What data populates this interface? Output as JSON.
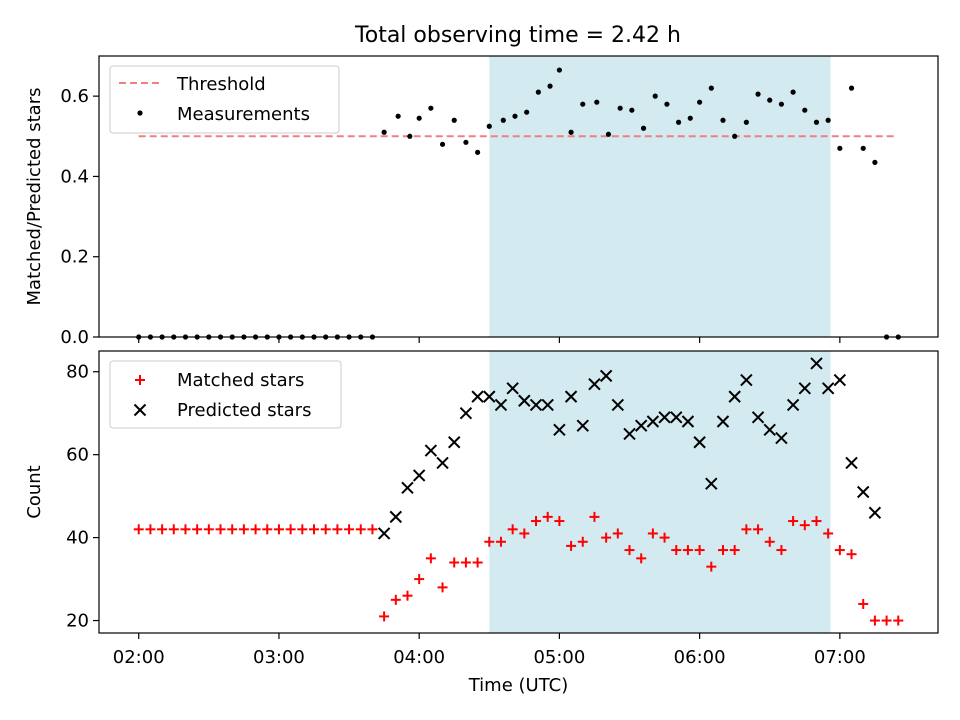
{
  "figure_title": "Total observing time = 2.42 h",
  "shaded_color": "#d3eaf0",
  "chart_data": [
    {
      "type": "scatter",
      "ylabel": "Matched/Predicted stars",
      "ylim": [
        0,
        0.7
      ],
      "yticks": [
        0.0,
        0.2,
        0.4,
        0.6
      ],
      "ytick_labels": [
        "0.0",
        "0.2",
        "0.4",
        "0.6"
      ],
      "legend_position": "upper-left",
      "threshold": {
        "name": "Threshold",
        "color": "#f08080",
        "value": 0.5,
        "x_range": [
          "02:00",
          "07:24"
        ]
      },
      "series": [
        {
          "name": "Measurements",
          "marker": "dot",
          "color": "#000000",
          "points": [
            [
              "02:00",
              0
            ],
            [
              "02:05",
              0
            ],
            [
              "02:10",
              0
            ],
            [
              "02:15",
              0
            ],
            [
              "02:20",
              0
            ],
            [
              "02:25",
              0
            ],
            [
              "02:30",
              0
            ],
            [
              "02:35",
              0
            ],
            [
              "02:40",
              0
            ],
            [
              "02:45",
              0
            ],
            [
              "02:50",
              0
            ],
            [
              "02:55",
              0
            ],
            [
              "03:00",
              0
            ],
            [
              "03:05",
              0
            ],
            [
              "03:10",
              0
            ],
            [
              "03:15",
              0
            ],
            [
              "03:20",
              0
            ],
            [
              "03:25",
              0
            ],
            [
              "03:30",
              0
            ],
            [
              "03:35",
              0
            ],
            [
              "03:40",
              0
            ],
            [
              "03:45",
              0.51
            ],
            [
              "03:51",
              0.55
            ],
            [
              "03:56",
              0.5
            ],
            [
              "04:00",
              0.545
            ],
            [
              "04:05",
              0.57
            ],
            [
              "04:10",
              0.48
            ],
            [
              "04:15",
              0.54
            ],
            [
              "04:20",
              0.485
            ],
            [
              "04:25",
              0.46
            ],
            [
              "04:30",
              0.525
            ],
            [
              "04:36",
              0.54
            ],
            [
              "04:41",
              0.55
            ],
            [
              "04:46",
              0.56
            ],
            [
              "04:51",
              0.61
            ],
            [
              "04:56",
              0.625
            ],
            [
              "05:00",
              0.665
            ],
            [
              "05:05",
              0.51
            ],
            [
              "05:10",
              0.58
            ],
            [
              "05:16",
              0.585
            ],
            [
              "05:21",
              0.505
            ],
            [
              "05:26",
              0.57
            ],
            [
              "05:31",
              0.565
            ],
            [
              "05:36",
              0.52
            ],
            [
              "05:41",
              0.6
            ],
            [
              "05:46",
              0.58
            ],
            [
              "05:51",
              0.535
            ],
            [
              "05:56",
              0.545
            ],
            [
              "06:00",
              0.585
            ],
            [
              "06:05",
              0.62
            ],
            [
              "06:10",
              0.54
            ],
            [
              "06:15",
              0.5
            ],
            [
              "06:20",
              0.535
            ],
            [
              "06:25",
              0.605
            ],
            [
              "06:30",
              0.59
            ],
            [
              "06:35",
              0.58
            ],
            [
              "06:40",
              0.61
            ],
            [
              "06:45",
              0.565
            ],
            [
              "06:50",
              0.535
            ],
            [
              "06:55",
              0.54
            ],
            [
              "07:00",
              0.47
            ],
            [
              "07:05",
              0.62
            ],
            [
              "07:10",
              0.47
            ],
            [
              "07:15",
              0.435
            ],
            [
              "07:20",
              0
            ],
            [
              "07:25",
              0
            ]
          ]
        }
      ]
    },
    {
      "type": "scatter",
      "xlabel": "Time (UTC)",
      "ylabel": "Count",
      "ylim": [
        17,
        85
      ],
      "yticks": [
        20,
        40,
        60,
        80
      ],
      "ytick_labels": [
        "20",
        "40",
        "60",
        "80"
      ],
      "legend_position": "upper-left",
      "series": [
        {
          "name": "Matched stars",
          "marker": "plus",
          "color": "#ff0000",
          "points": [
            [
              "02:00",
              42
            ],
            [
              "02:05",
              42
            ],
            [
              "02:10",
              42
            ],
            [
              "02:15",
              42
            ],
            [
              "02:20",
              42
            ],
            [
              "02:25",
              42
            ],
            [
              "02:30",
              42
            ],
            [
              "02:35",
              42
            ],
            [
              "02:40",
              42
            ],
            [
              "02:45",
              42
            ],
            [
              "02:50",
              42
            ],
            [
              "02:55",
              42
            ],
            [
              "03:00",
              42
            ],
            [
              "03:05",
              42
            ],
            [
              "03:10",
              42
            ],
            [
              "03:15",
              42
            ],
            [
              "03:20",
              42
            ],
            [
              "03:25",
              42
            ],
            [
              "03:30",
              42
            ],
            [
              "03:35",
              42
            ],
            [
              "03:40",
              42
            ],
            [
              "03:45",
              21
            ],
            [
              "03:50",
              25
            ],
            [
              "03:55",
              26
            ],
            [
              "04:00",
              30
            ],
            [
              "04:05",
              35
            ],
            [
              "04:10",
              28
            ],
            [
              "04:15",
              34
            ],
            [
              "04:20",
              34
            ],
            [
              "04:25",
              34
            ],
            [
              "04:30",
              39
            ],
            [
              "04:35",
              39
            ],
            [
              "04:40",
              42
            ],
            [
              "04:45",
              41
            ],
            [
              "04:50",
              44
            ],
            [
              "04:55",
              45
            ],
            [
              "05:00",
              44
            ],
            [
              "05:05",
              38
            ],
            [
              "05:10",
              39
            ],
            [
              "05:15",
              45
            ],
            [
              "05:20",
              40
            ],
            [
              "05:25",
              41
            ],
            [
              "05:30",
              37
            ],
            [
              "05:35",
              35
            ],
            [
              "05:40",
              41
            ],
            [
              "05:45",
              40
            ],
            [
              "05:50",
              37
            ],
            [
              "05:55",
              37
            ],
            [
              "06:00",
              37
            ],
            [
              "06:05",
              33
            ],
            [
              "06:10",
              37
            ],
            [
              "06:15",
              37
            ],
            [
              "06:20",
              42
            ],
            [
              "06:25",
              42
            ],
            [
              "06:30",
              39
            ],
            [
              "06:35",
              37
            ],
            [
              "06:40",
              44
            ],
            [
              "06:45",
              43
            ],
            [
              "06:50",
              44
            ],
            [
              "06:55",
              41
            ],
            [
              "07:00",
              37
            ],
            [
              "07:05",
              36
            ],
            [
              "07:10",
              24
            ],
            [
              "07:15",
              20
            ],
            [
              "07:20",
              20
            ],
            [
              "07:25",
              20
            ]
          ]
        },
        {
          "name": "Predicted stars",
          "marker": "x",
          "color": "#000000",
          "points": [
            [
              "03:45",
              41
            ],
            [
              "03:50",
              45
            ],
            [
              "03:55",
              52
            ],
            [
              "04:00",
              55
            ],
            [
              "04:05",
              61
            ],
            [
              "04:10",
              58
            ],
            [
              "04:15",
              63
            ],
            [
              "04:20",
              70
            ],
            [
              "04:25",
              74
            ],
            [
              "04:30",
              74
            ],
            [
              "04:35",
              72
            ],
            [
              "04:40",
              76
            ],
            [
              "04:45",
              73
            ],
            [
              "04:50",
              72
            ],
            [
              "04:55",
              72
            ],
            [
              "05:00",
              66
            ],
            [
              "05:05",
              74
            ],
            [
              "05:10",
              67
            ],
            [
              "05:15",
              77
            ],
            [
              "05:20",
              79
            ],
            [
              "05:25",
              72
            ],
            [
              "05:30",
              65
            ],
            [
              "05:35",
              67
            ],
            [
              "05:40",
              68
            ],
            [
              "05:45",
              69
            ],
            [
              "05:50",
              69
            ],
            [
              "05:55",
              68
            ],
            [
              "06:00",
              63
            ],
            [
              "06:05",
              53
            ],
            [
              "06:10",
              68
            ],
            [
              "06:15",
              74
            ],
            [
              "06:20",
              78
            ],
            [
              "06:25",
              69
            ],
            [
              "06:30",
              66
            ],
            [
              "06:35",
              64
            ],
            [
              "06:40",
              72
            ],
            [
              "06:45",
              76
            ],
            [
              "06:50",
              82
            ],
            [
              "06:55",
              76
            ],
            [
              "07:00",
              78
            ],
            [
              "07:05",
              58
            ],
            [
              "07:10",
              51
            ],
            [
              "07:15",
              46
            ]
          ]
        }
      ],
      "xticks": [
        "02:00",
        "03:00",
        "04:00",
        "05:00",
        "06:00",
        "07:00"
      ],
      "xlim": [
        "01:43",
        "07:42"
      ],
      "shaded_x_range": [
        "04:30",
        "06:56"
      ]
    }
  ]
}
